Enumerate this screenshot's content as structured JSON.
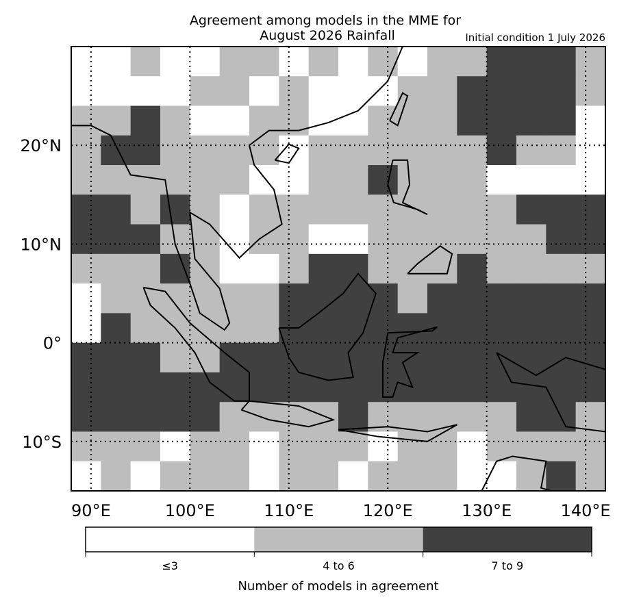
{
  "chart_data": {
    "type": "map",
    "title": "Agreement among models in the MME for",
    "subtitle": "August 2026  Rainfall",
    "annotation": "Initial condition 1 July 2026",
    "xlim": [
      88,
      142
    ],
    "ylim": [
      -15,
      30
    ],
    "xticks": [
      {
        "value": 90,
        "label": "90°E"
      },
      {
        "value": 100,
        "label": "100°E"
      },
      {
        "value": 110,
        "label": "110°E"
      },
      {
        "value": 120,
        "label": "120°E"
      },
      {
        "value": 130,
        "label": "130°E"
      },
      {
        "value": 140,
        "label": "140°E"
      }
    ],
    "yticks": [
      {
        "value": 20,
        "label": "20°N"
      },
      {
        "value": 10,
        "label": "10°N"
      },
      {
        "value": 0,
        "label": "0°"
      },
      {
        "value": -10,
        "label": "10°S"
      }
    ],
    "grid": true,
    "legend_title": "Number of models in agreement",
    "legend": [
      {
        "label": "≤3",
        "color": "#ffffff"
      },
      {
        "label": "4 to 6",
        "color": "#bdbdbd"
      },
      {
        "label": "7 to 9",
        "color": "#404040"
      }
    ],
    "classes": [
      [
        0,
        0,
        1,
        0,
        0,
        1,
        1,
        0,
        1,
        0,
        1,
        0,
        1,
        1,
        2,
        2,
        2,
        1
      ],
      [
        0,
        0,
        0,
        0,
        1,
        1,
        0,
        1,
        0,
        0,
        0,
        1,
        1,
        2,
        2,
        2,
        2,
        1
      ],
      [
        1,
        1,
        2,
        1,
        0,
        0,
        1,
        1,
        0,
        0,
        1,
        1,
        1,
        2,
        2,
        2,
        2,
        0
      ],
      [
        1,
        2,
        2,
        1,
        1,
        1,
        1,
        0,
        1,
        1,
        1,
        1,
        1,
        1,
        2,
        1,
        1,
        0
      ],
      [
        1,
        1,
        1,
        1,
        1,
        1,
        0,
        0,
        1,
        1,
        2,
        1,
        1,
        1,
        0,
        0,
        0,
        0
      ],
      [
        2,
        2,
        1,
        2,
        1,
        0,
        1,
        1,
        1,
        1,
        1,
        1,
        1,
        1,
        1,
        2,
        2,
        2
      ],
      [
        2,
        2,
        2,
        1,
        1,
        0,
        1,
        1,
        0,
        0,
        1,
        1,
        1,
        1,
        1,
        1,
        2,
        2
      ],
      [
        1,
        1,
        1,
        2,
        1,
        0,
        0,
        1,
        2,
        2,
        1,
        1,
        1,
        2,
        1,
        1,
        1,
        1
      ],
      [
        0,
        1,
        1,
        1,
        1,
        1,
        1,
        2,
        2,
        2,
        2,
        1,
        2,
        2,
        2,
        2,
        2,
        2
      ],
      [
        0,
        2,
        1,
        1,
        1,
        1,
        1,
        2,
        2,
        2,
        2,
        2,
        2,
        2,
        2,
        2,
        2,
        2
      ],
      [
        2,
        2,
        2,
        1,
        1,
        2,
        2,
        2,
        2,
        2,
        2,
        2,
        2,
        2,
        2,
        2,
        2,
        2
      ],
      [
        2,
        2,
        2,
        2,
        2,
        2,
        2,
        2,
        2,
        2,
        2,
        2,
        2,
        2,
        2,
        2,
        2,
        2
      ],
      [
        2,
        2,
        2,
        2,
        2,
        1,
        1,
        1,
        1,
        2,
        1,
        1,
        1,
        1,
        1,
        2,
        2,
        1
      ],
      [
        1,
        1,
        1,
        0,
        1,
        1,
        0,
        1,
        1,
        1,
        0,
        1,
        1,
        0,
        1,
        1,
        1,
        1
      ],
      [
        0,
        1,
        0,
        1,
        1,
        1,
        0,
        1,
        1,
        0,
        1,
        1,
        1,
        0,
        0,
        1,
        2,
        1
      ]
    ]
  }
}
